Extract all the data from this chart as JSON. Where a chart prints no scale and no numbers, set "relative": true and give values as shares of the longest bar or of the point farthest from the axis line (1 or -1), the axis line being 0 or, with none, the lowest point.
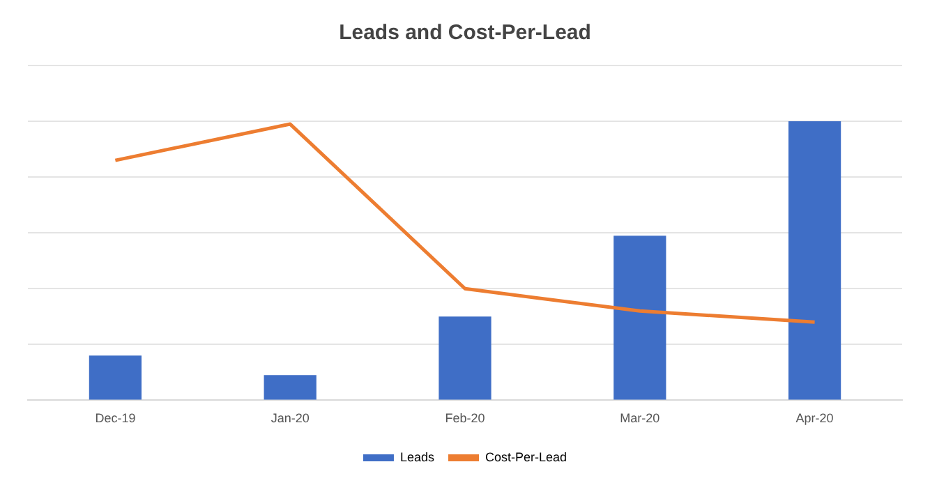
{
  "chart_data": {
    "type": "bar",
    "title": "Leads and Cost-Per-Lead",
    "relative": true,
    "grid": "y",
    "legend": "bottom",
    "marker": "none",
    "categories": [
      "Dec-19",
      "Jan-20",
      "Feb-20",
      "Mar-20",
      "Apr-20"
    ],
    "series": [
      {
        "name": "Leads",
        "color": "#3f6ec6",
        "values": [
          0.16,
          0.09,
          0.3,
          0.59,
          1
        ]
      },
      {
        "name": "Cost-Per-Lead",
        "type": "line",
        "color": "#ed7d31",
        "values": [
          0.86,
          0.99,
          0.4,
          0.32,
          0.28
        ]
      }
    ]
  }
}
